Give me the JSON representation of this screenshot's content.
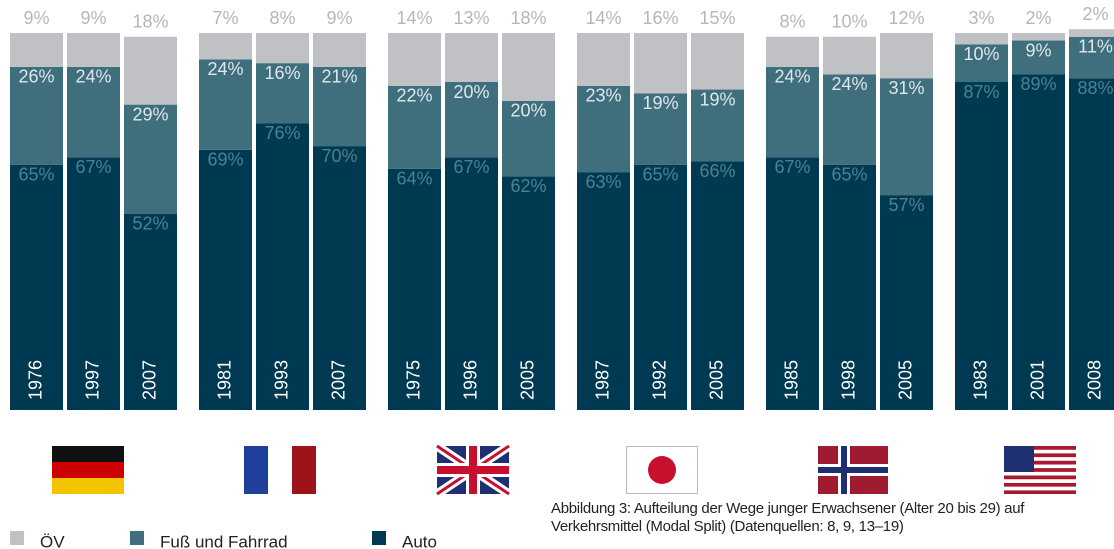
{
  "chart_data": {
    "type": "stacked_bar",
    "categories": [
      "1976",
      "1997",
      "2007",
      "1981",
      "1993",
      "2007",
      "1975",
      "1996",
      "2005",
      "1987",
      "1992",
      "2005",
      "1985",
      "1998",
      "2005",
      "1983",
      "2001",
      "2008"
    ],
    "series": [
      {
        "name": "Auto",
        "color": "#003a52",
        "values": [
          65,
          67,
          52,
          69,
          76,
          70,
          64,
          67,
          62,
          63,
          65,
          66,
          67,
          65,
          57,
          87,
          89,
          88
        ],
        "value_labels": [
          "65%",
          "67%",
          "52%",
          "69%",
          "76%",
          "70%",
          "64%",
          "67%",
          "62%",
          "63%",
          "65%",
          "66%",
          "67%",
          "65%",
          "57%",
          "87%",
          "89%",
          "88%"
        ]
      },
      {
        "name": "Fuß und Fahrrad",
        "color": "#3f6e7c",
        "values": [
          26,
          24,
          29,
          24,
          16,
          21,
          22,
          20,
          20,
          23,
          19,
          19,
          24,
          24,
          31,
          10,
          9,
          11
        ],
        "value_labels": [
          "26%",
          "24%",
          "29%",
          "24%",
          "16%",
          "21%",
          "22%",
          "20%",
          "20%",
          "23%",
          "19%",
          "19%",
          "24%",
          "24%",
          "31%",
          "10%",
          "9%",
          "11%"
        ]
      },
      {
        "name": "ÖV",
        "color": "#c0c1c4",
        "values": [
          9,
          9,
          18,
          7,
          8,
          9,
          14,
          13,
          18,
          14,
          16,
          15,
          8,
          10,
          12,
          3,
          2,
          2
        ],
        "value_labels": [
          "9%",
          "9%",
          "18%",
          "7%",
          "8%",
          "9%",
          "14%",
          "13%",
          "18%",
          "14%",
          "16%",
          "15%",
          "8%",
          "10%",
          "12%",
          "3%",
          "2%",
          "2%"
        ]
      }
    ],
    "ylim": [
      0,
      100
    ],
    "caption": "Abbildung 3: Aufteilung der Wege junger Erwachsener (Alter 20 bis 29) auf Verkehrsmittel (Modal Split) (Datenquellen: 8, 9, 13–19)"
  }
}
